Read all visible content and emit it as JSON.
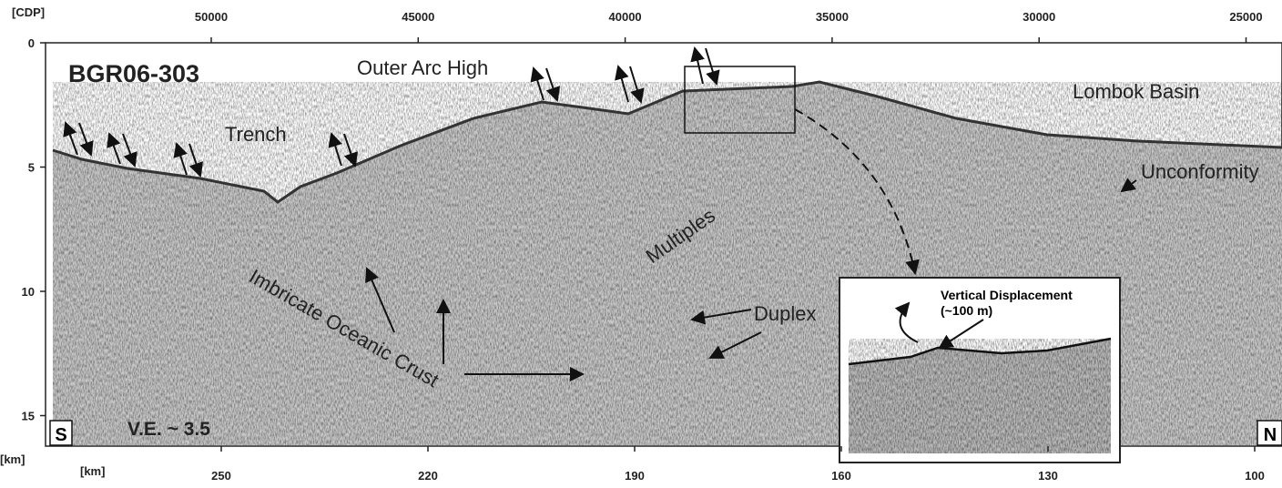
{
  "figure": {
    "title": "BGR06-303",
    "top_axis": {
      "unit": "[CDP]",
      "ticks": [
        50000,
        45000,
        40000,
        35000,
        30000,
        25000
      ]
    },
    "left_axis": {
      "unit": "[km]",
      "ticks": [
        0,
        5,
        10,
        15
      ]
    },
    "bottom_axis": {
      "unit": "[km]",
      "ticks": [
        250,
        220,
        190,
        160,
        130,
        100
      ]
    },
    "labels": {
      "outer_arc_high": "Outer Arc High",
      "trench": "Trench",
      "lombok_basin": "Lombok Basin",
      "unconformity": "Unconformity",
      "multiples": "Multiples",
      "duplex": "Duplex",
      "imbricate": "Imbricate Oceanic Crust",
      "ve": "V.E. ~ 3.5",
      "south": "S",
      "north": "N"
    },
    "inset": {
      "title": "Vertical Displacement",
      "subtitle": "(~100 m)"
    }
  }
}
